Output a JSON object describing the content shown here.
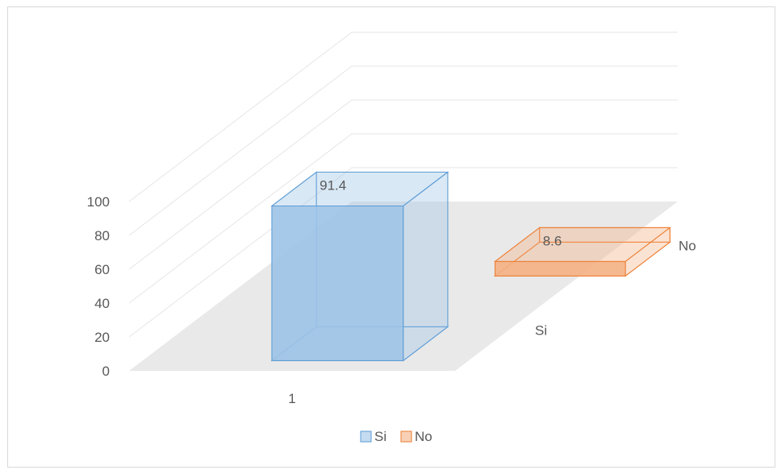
{
  "chart_data": {
    "type": "bar",
    "categories": [
      "1"
    ],
    "depth_categories": [
      "Si",
      "No"
    ],
    "series": [
      {
        "name": "Si",
        "values": [
          91.4
        ],
        "color": "#5b9bd5",
        "fill": "#9dc3e6"
      },
      {
        "name": "No",
        "values": [
          8.6
        ],
        "color": "#ed7d31",
        "fill": "#f4b183"
      }
    ],
    "data_labels": [
      "91.4",
      "8.6"
    ],
    "y_ticks": [
      "0",
      "20",
      "40",
      "60",
      "80",
      "100"
    ],
    "ylim": [
      0,
      100
    ],
    "legend_position": "bottom",
    "grid": true,
    "three_d": true
  }
}
